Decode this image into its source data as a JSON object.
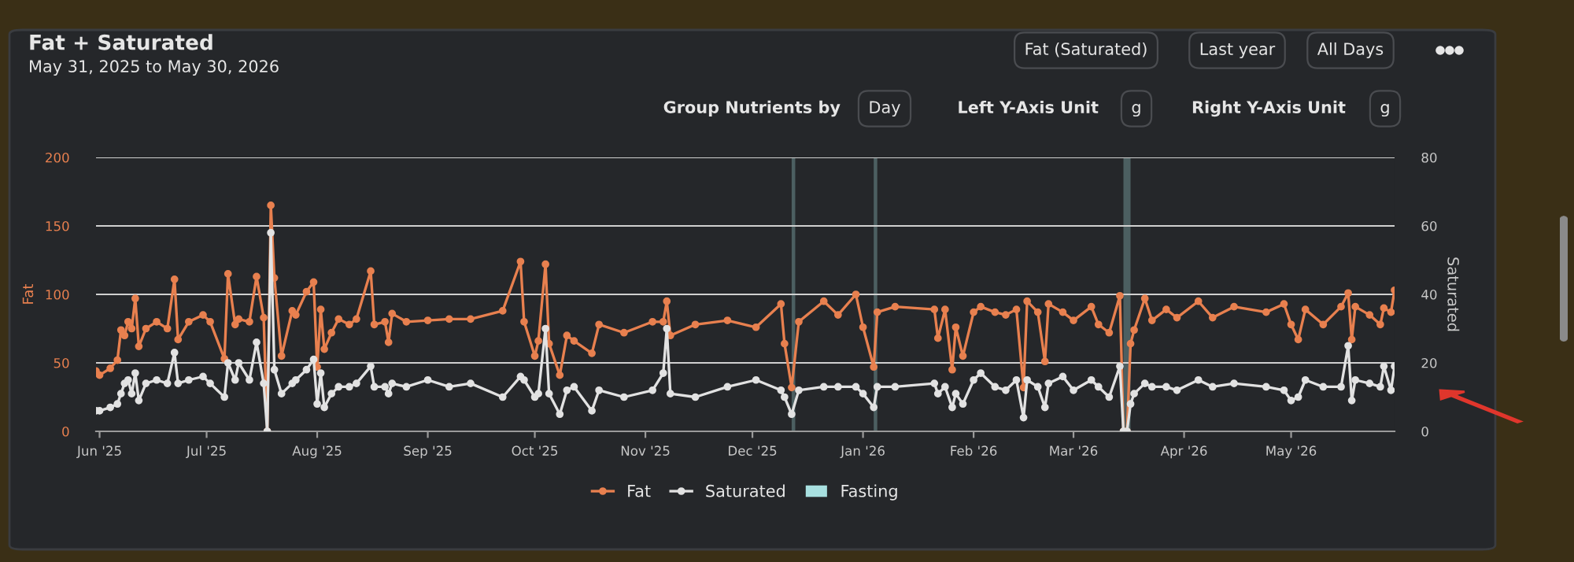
{
  "chart_data": {
    "type": "line",
    "title": "Fat + Saturated",
    "subtitle": "May 31, 2025 to May 30, 2026",
    "ylabel": "Fat",
    "y2label": "Saturated",
    "annotations": [
      "Fat (Saturated)",
      "Last year",
      "All Days",
      "Group Nutrients by",
      "Day",
      "Left Y-Axis Unit",
      "g",
      "Right Y-Axis Unit",
      "g"
    ],
    "x": [
      "2025-05-31",
      "2025-06-01",
      "2025-06-04",
      "2025-06-06",
      "2025-06-07",
      "2025-06-08",
      "2025-06-09",
      "2025-06-10",
      "2025-06-11",
      "2025-06-12",
      "2025-06-14",
      "2025-06-17",
      "2025-06-20",
      "2025-06-22",
      "2025-06-23",
      "2025-06-26",
      "2025-06-30",
      "2025-07-02",
      "2025-07-06",
      "2025-07-07",
      "2025-07-09",
      "2025-07-10",
      "2025-07-13",
      "2025-07-15",
      "2025-07-17",
      "2025-07-18",
      "2025-07-19",
      "2025-07-20",
      "2025-07-22",
      "2025-07-25",
      "2025-07-26",
      "2025-07-29",
      "2025-07-31",
      "2025-08-01",
      "2025-08-02",
      "2025-08-03",
      "2025-08-05",
      "2025-08-07",
      "2025-08-10",
      "2025-08-12",
      "2025-08-16",
      "2025-08-17",
      "2025-08-20",
      "2025-08-21",
      "2025-08-22",
      "2025-08-26",
      "2025-09-01",
      "2025-09-07",
      "2025-09-13",
      "2025-09-22",
      "2025-09-27",
      "2025-09-28",
      "2025-10-01",
      "2025-10-02",
      "2025-10-04",
      "2025-10-05",
      "2025-10-08",
      "2025-10-10",
      "2025-10-12",
      "2025-10-17",
      "2025-10-19",
      "2025-10-26",
      "2025-11-03",
      "2025-11-06",
      "2025-11-07",
      "2025-11-08",
      "2025-11-15",
      "2025-11-24",
      "2025-12-02",
      "2025-12-09",
      "2025-12-10",
      "2025-12-12",
      "2025-12-14",
      "2025-12-21",
      "2025-12-25",
      "2025-12-30",
      "2026-01-01",
      "2026-01-04",
      "2026-01-05",
      "2026-01-10",
      "2026-01-21",
      "2026-01-22",
      "2026-01-24",
      "2026-01-26",
      "2026-01-27",
      "2026-01-29",
      "2026-02-01",
      "2026-02-03",
      "2026-02-07",
      "2026-02-10",
      "2026-02-13",
      "2026-02-15",
      "2026-02-16",
      "2026-02-19",
      "2026-02-21",
      "2026-02-22",
      "2026-02-26",
      "2026-03-01",
      "2026-03-06",
      "2026-03-08",
      "2026-03-11",
      "2026-03-14",
      "2026-03-15",
      "2026-03-16",
      "2026-03-17",
      "2026-03-18",
      "2026-03-21",
      "2026-03-23",
      "2026-03-27",
      "2026-03-30",
      "2026-04-05",
      "2026-04-09",
      "2026-04-15",
      "2026-04-24",
      "2026-04-29",
      "2026-05-01",
      "2026-05-03",
      "2026-05-05",
      "2026-05-10",
      "2026-05-15",
      "2026-05-17",
      "2026-05-18",
      "2026-05-19",
      "2026-05-23",
      "2026-05-26",
      "2026-05-27",
      "2026-05-29",
      "2026-05-30"
    ],
    "series": [
      {
        "name": "Fat",
        "color": "#e8804f",
        "values": [
          44,
          41,
          46,
          52,
          74,
          70,
          80,
          75,
          97,
          62,
          75,
          80,
          75,
          111,
          67,
          80,
          85,
          80,
          53,
          115,
          78,
          82,
          80,
          113,
          83,
          0,
          165,
          112,
          55,
          88,
          85,
          102,
          109,
          47,
          89,
          60,
          72,
          82,
          78,
          82,
          117,
          78,
          80,
          65,
          86,
          80,
          81,
          82,
          82,
          88,
          124,
          80,
          55,
          66,
          122,
          64,
          41,
          70,
          66,
          57,
          78,
          72,
          80,
          80,
          95,
          70,
          78,
          81,
          76,
          93,
          64,
          32,
          80,
          95,
          85,
          100,
          76,
          47,
          87,
          91,
          89,
          68,
          89,
          45,
          76,
          55,
          87,
          91,
          87,
          85,
          89,
          32,
          95,
          87,
          51,
          93,
          87,
          81,
          91,
          78,
          72,
          99,
          0,
          0,
          64,
          74,
          97,
          81,
          89,
          83,
          95,
          83,
          91,
          87,
          93,
          78,
          67,
          89,
          78,
          91,
          101,
          67,
          91,
          85,
          78,
          90,
          87,
          103
        ]
      },
      {
        "name": "Saturated",
        "color": "#e2e2e2",
        "axis": "y2",
        "values": [
          6,
          6,
          7,
          8,
          11,
          14,
          15,
          11,
          17,
          9,
          14,
          15,
          14,
          23,
          14,
          15,
          16,
          14,
          10,
          20,
          15,
          20,
          15,
          26,
          14,
          0,
          58,
          18,
          11,
          14,
          15,
          18,
          21,
          8,
          17,
          7,
          11,
          13,
          13,
          14,
          19,
          13,
          13,
          11,
          14,
          13,
          15,
          13,
          14,
          10,
          16,
          15,
          10,
          11,
          30,
          11,
          5,
          12,
          13,
          6,
          12,
          10,
          12,
          17,
          30,
          11,
          10,
          13,
          15,
          12,
          10,
          5,
          12,
          13,
          13,
          13,
          11,
          7,
          13,
          13,
          14,
          11,
          13,
          7,
          11,
          8,
          15,
          17,
          13,
          12,
          15,
          4,
          15,
          13,
          7,
          14,
          16,
          12,
          15,
          13,
          10,
          19,
          0,
          0,
          8,
          11,
          14,
          13,
          13,
          12,
          15,
          13,
          14,
          13,
          12,
          9,
          10,
          15,
          13,
          13,
          25,
          9,
          15,
          14,
          13,
          19,
          12,
          19
        ]
      }
    ],
    "xlim": [
      "2025-05-31",
      "2026-05-30"
    ],
    "xticks": [
      {
        "value": "2025-06-01",
        "label": "Jun '25"
      },
      {
        "value": "2025-07-01",
        "label": "Jul '25"
      },
      {
        "value": "2025-08-01",
        "label": "Aug '25"
      },
      {
        "value": "2025-09-01",
        "label": "Sep '25"
      },
      {
        "value": "2025-10-01",
        "label": "Oct '25"
      },
      {
        "value": "2025-11-01",
        "label": "Nov '25"
      },
      {
        "value": "2025-12-01",
        "label": "Dec '25"
      },
      {
        "value": "2026-01-01",
        "label": "Jan '26"
      },
      {
        "value": "2026-02-01",
        "label": "Feb '26"
      },
      {
        "value": "2026-03-01",
        "label": "Mar '26"
      },
      {
        "value": "2026-04-01",
        "label": "Apr '26"
      },
      {
        "value": "2026-05-01",
        "label": "May '26"
      }
    ],
    "ylim": [
      0,
      200
    ],
    "yticks": [
      0,
      50,
      100,
      150,
      200
    ],
    "y2lim": [
      0,
      80
    ],
    "y2ticks": [
      0,
      20,
      40,
      60,
      80
    ],
    "bands": [
      {
        "axis": "x",
        "from": "2025-12-12",
        "to": "2025-12-13",
        "label": "Fasting",
        "color": "#a8e0e0"
      },
      {
        "axis": "x",
        "from": "2026-01-04",
        "to": "2026-01-05",
        "color": "#a8e0e0"
      },
      {
        "axis": "x",
        "from": "2026-03-15",
        "to": "2026-03-17",
        "color": "#a8e0e0"
      }
    ],
    "grid": "y",
    "legend": "bottom",
    "marker": "circle",
    "line_style": "solid"
  }
}
